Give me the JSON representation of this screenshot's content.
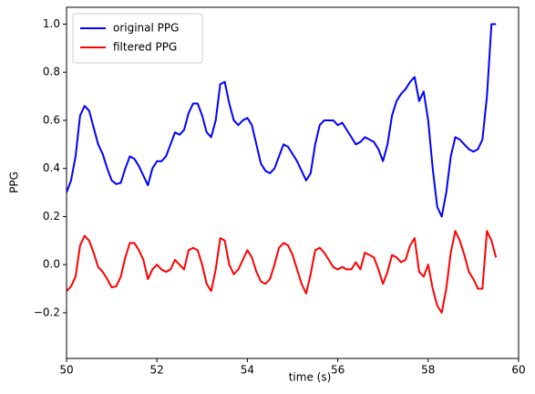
{
  "chart_data": {
    "type": "line",
    "xlabel": "time (s)",
    "ylabel": "PPG",
    "x": [
      50.0,
      50.1,
      50.2,
      50.3,
      50.4,
      50.5,
      50.6,
      50.7,
      50.8,
      50.9,
      51.0,
      51.1,
      51.2,
      51.3,
      51.4,
      51.5,
      51.6,
      51.7,
      51.8,
      51.9,
      52.0,
      52.1,
      52.2,
      52.3,
      52.4,
      52.5,
      52.6,
      52.7,
      52.8,
      52.9,
      53.0,
      53.1,
      53.2,
      53.3,
      53.4,
      53.5,
      53.6,
      53.7,
      53.8,
      53.9,
      54.0,
      54.1,
      54.2,
      54.3,
      54.4,
      54.5,
      54.6,
      54.7,
      54.8,
      54.9,
      55.0,
      55.1,
      55.2,
      55.3,
      55.4,
      55.5,
      55.6,
      55.7,
      55.8,
      55.9,
      56.0,
      56.1,
      56.2,
      56.3,
      56.4,
      56.5,
      56.6,
      56.7,
      56.8,
      56.9,
      57.0,
      57.1,
      57.2,
      57.3,
      57.4,
      57.5,
      57.6,
      57.7,
      57.8,
      57.9,
      58.0,
      58.1,
      58.2,
      58.3,
      58.4,
      58.5,
      58.6,
      58.7,
      58.8,
      58.9,
      59.0,
      59.1,
      59.2,
      59.3,
      59.4,
      59.5
    ],
    "series": [
      {
        "name": "original PPG",
        "color": "#0000ff",
        "values": [
          0.3,
          0.35,
          0.45,
          0.62,
          0.66,
          0.64,
          0.57,
          0.5,
          0.46,
          0.4,
          0.35,
          0.335,
          0.34,
          0.4,
          0.45,
          0.44,
          0.41,
          0.37,
          0.33,
          0.4,
          0.43,
          0.43,
          0.45,
          0.5,
          0.55,
          0.54,
          0.56,
          0.63,
          0.67,
          0.67,
          0.62,
          0.55,
          0.53,
          0.6,
          0.75,
          0.76,
          0.67,
          0.6,
          0.58,
          0.6,
          0.61,
          0.58,
          0.5,
          0.42,
          0.39,
          0.38,
          0.4,
          0.45,
          0.5,
          0.49,
          0.46,
          0.43,
          0.39,
          0.35,
          0.38,
          0.5,
          0.58,
          0.6,
          0.6,
          0.6,
          0.58,
          0.59,
          0.56,
          0.53,
          0.5,
          0.51,
          0.53,
          0.52,
          0.51,
          0.48,
          0.43,
          0.5,
          0.62,
          0.68,
          0.71,
          0.73,
          0.76,
          0.78,
          0.68,
          0.72,
          0.6,
          0.4,
          0.24,
          0.2,
          0.3,
          0.45,
          0.53,
          0.52,
          0.5,
          0.48,
          0.47,
          0.48,
          0.52,
          0.7,
          1.0,
          1.0
        ]
      },
      {
        "name": "filtered PPG",
        "color": "#ff0000",
        "values": [
          -0.11,
          -0.09,
          -0.05,
          0.08,
          0.12,
          0.1,
          0.05,
          -0.01,
          -0.03,
          -0.06,
          -0.095,
          -0.09,
          -0.05,
          0.03,
          0.09,
          0.09,
          0.06,
          0.02,
          -0.06,
          -0.02,
          0.0,
          -0.02,
          -0.03,
          -0.02,
          0.02,
          0.0,
          -0.02,
          0.06,
          0.07,
          0.06,
          0.0,
          -0.08,
          -0.11,
          -0.02,
          0.11,
          0.1,
          0.0,
          -0.04,
          -0.02,
          0.02,
          0.06,
          0.03,
          -0.03,
          -0.07,
          -0.08,
          -0.06,
          0.0,
          0.07,
          0.09,
          0.08,
          0.04,
          -0.02,
          -0.08,
          -0.12,
          -0.04,
          0.06,
          0.07,
          0.05,
          0.02,
          -0.01,
          -0.02,
          -0.01,
          -0.02,
          -0.02,
          0.01,
          -0.02,
          0.05,
          0.04,
          0.03,
          -0.02,
          -0.08,
          -0.03,
          0.04,
          0.03,
          0.01,
          0.02,
          0.08,
          0.11,
          -0.03,
          -0.05,
          0.0,
          -0.1,
          -0.17,
          -0.2,
          -0.1,
          0.05,
          0.14,
          0.1,
          0.04,
          -0.03,
          -0.06,
          -0.1,
          -0.1,
          0.14,
          0.1,
          0.03
        ]
      }
    ],
    "xlim": [
      50,
      60
    ],
    "xticks": [
      50,
      52,
      54,
      56,
      58,
      60
    ],
    "ylim": [
      -0.39,
      1.07
    ],
    "yticks": [
      {
        "value": -0.2,
        "label": "−0.2"
      },
      {
        "value": 0,
        "label": "0.0"
      },
      0.2,
      0.4,
      0.6,
      0.8,
      {
        "value": 1,
        "label": "1.0"
      }
    ],
    "legend": "upper left",
    "grid": false
  }
}
